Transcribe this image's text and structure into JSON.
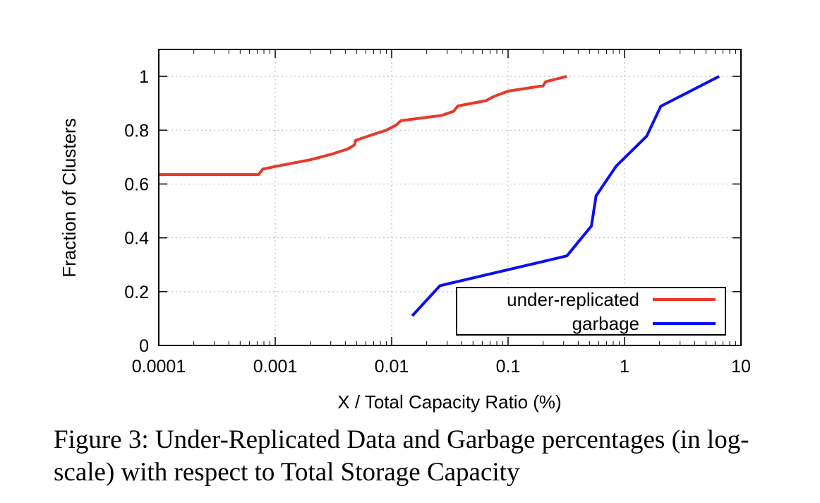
{
  "chart_data": {
    "type": "line",
    "xlabel": "X / Total Capacity Ratio (%)",
    "ylabel": "Fraction of Clusters",
    "x_scale": "log",
    "xlim": [
      0.0001,
      10
    ],
    "ylim": [
      0,
      1.1
    ],
    "x_ticks": [
      0.0001,
      0.001,
      0.01,
      0.1,
      1,
      10
    ],
    "x_tick_labels": [
      "0.0001",
      "0.001",
      "0.01",
      "0.1",
      "1",
      "10"
    ],
    "y_ticks": [
      0,
      0.2,
      0.4,
      0.6,
      0.8,
      1
    ],
    "y_tick_labels": [
      "0",
      "0.2",
      "0.4",
      "0.6",
      "0.8",
      "1"
    ],
    "grid": true,
    "legend_position": "bottom-right",
    "series": [
      {
        "name": "under-replicated",
        "color": "#e8392b",
        "points": [
          [
            0.0001,
            0.635
          ],
          [
            0.00072,
            0.635
          ],
          [
            0.00078,
            0.655
          ],
          [
            0.001,
            0.665
          ],
          [
            0.002,
            0.69
          ],
          [
            0.003,
            0.71
          ],
          [
            0.0042,
            0.73
          ],
          [
            0.0048,
            0.745
          ],
          [
            0.0049,
            0.762
          ],
          [
            0.0065,
            0.78
          ],
          [
            0.009,
            0.8
          ],
          [
            0.011,
            0.82
          ],
          [
            0.012,
            0.835
          ],
          [
            0.027,
            0.855
          ],
          [
            0.034,
            0.87
          ],
          [
            0.037,
            0.89
          ],
          [
            0.065,
            0.91
          ],
          [
            0.075,
            0.925
          ],
          [
            0.1,
            0.945
          ],
          [
            0.2,
            0.965
          ],
          [
            0.21,
            0.98
          ],
          [
            0.32,
            1.0
          ]
        ]
      },
      {
        "name": "garbage",
        "color": "#0a10ee",
        "points": [
          [
            0.015,
            0.11
          ],
          [
            0.026,
            0.222
          ],
          [
            0.32,
            0.333
          ],
          [
            0.52,
            0.444
          ],
          [
            0.57,
            0.556
          ],
          [
            0.85,
            0.667
          ],
          [
            1.55,
            0.778
          ],
          [
            2.05,
            0.889
          ],
          [
            6.5,
            1.0
          ]
        ]
      }
    ]
  },
  "caption": "Figure 3: Under-Replicated Data and Garbage percentages (in log-scale) with respect to Total Storage Capacity"
}
